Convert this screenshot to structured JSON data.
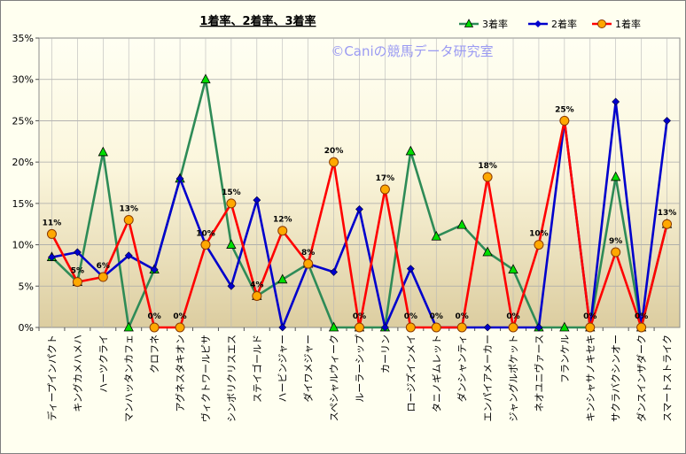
{
  "chart_data": {
    "type": "line",
    "title": "1着率、2着率、3着率",
    "watermark": "©Caniの競馬データ研究室",
    "ylim": [
      0,
      35
    ],
    "yticks": [
      0,
      5,
      10,
      15,
      20,
      25,
      30,
      35
    ],
    "ytick_labels": [
      "0%",
      "5%",
      "10%",
      "15%",
      "20%",
      "25%",
      "30%",
      "35%"
    ],
    "grid": true,
    "legend_position": "top-right",
    "categories": [
      "ディープインパクト",
      "キングカメハメハ",
      "ハーツクライ",
      "マンハッタンカフェ",
      "クロフネ",
      "アグネスタキオン",
      "ヴィクトワールピサ",
      "シンボリクリスエス",
      "ステイゴールド",
      "ハービンジャー",
      "ダイワメジャー",
      "スペシャルウィーク",
      "ルーラーシップ",
      "カーリン",
      "ロージズインメイ",
      "タニノギムレット",
      "ダンシャンティ",
      "エンパイアメーカー",
      "ジャングルポケット",
      "ネオユニヴァース",
      "フランケル",
      "キンシャサノキセキ",
      "サクラバクシンオー",
      "ダンスインザダーク",
      "スマートストライク"
    ],
    "series": [
      {
        "name": "3着率",
        "color": "#2e8b57",
        "marker": "triangle",
        "values": [
          8.5,
          5.5,
          21.2,
          0,
          7.0,
          18.0,
          30.0,
          10.0,
          3.8,
          5.8,
          7.7,
          0,
          0,
          0,
          21.3,
          11.0,
          12.4,
          9.1,
          7.0,
          0,
          0,
          0,
          18.2,
          0,
          12.5
        ]
      },
      {
        "name": "2着率",
        "color": "#0000cc",
        "marker": "diamond",
        "values": [
          8.5,
          9.1,
          6.1,
          8.7,
          7.0,
          18.0,
          10.0,
          5.0,
          15.4,
          0,
          7.7,
          6.7,
          14.3,
          0,
          7.1,
          0,
          0,
          0,
          0,
          0,
          25.0,
          0,
          27.3,
          0,
          25.0
        ]
      },
      {
        "name": "1着率",
        "color": "#ff0000",
        "marker": "circle",
        "values": [
          11.3,
          5.5,
          6.1,
          13.0,
          0,
          0,
          10.0,
          15.0,
          3.8,
          11.7,
          7.7,
          20.0,
          0,
          16.7,
          0,
          0,
          0,
          18.2,
          0,
          10.0,
          25.0,
          0,
          9.1,
          0,
          12.5
        ],
        "data_labels": [
          "11%",
          "5%",
          "6%",
          "13%",
          "0%",
          "0%",
          "10%",
          "15%",
          "4%",
          "12%",
          "8%",
          "20%",
          "0%",
          "17%",
          "0%",
          "0%",
          "0%",
          "18%",
          "0%",
          "10%",
          "25%",
          "0%",
          "9%",
          "0%",
          "13%"
        ]
      }
    ]
  }
}
